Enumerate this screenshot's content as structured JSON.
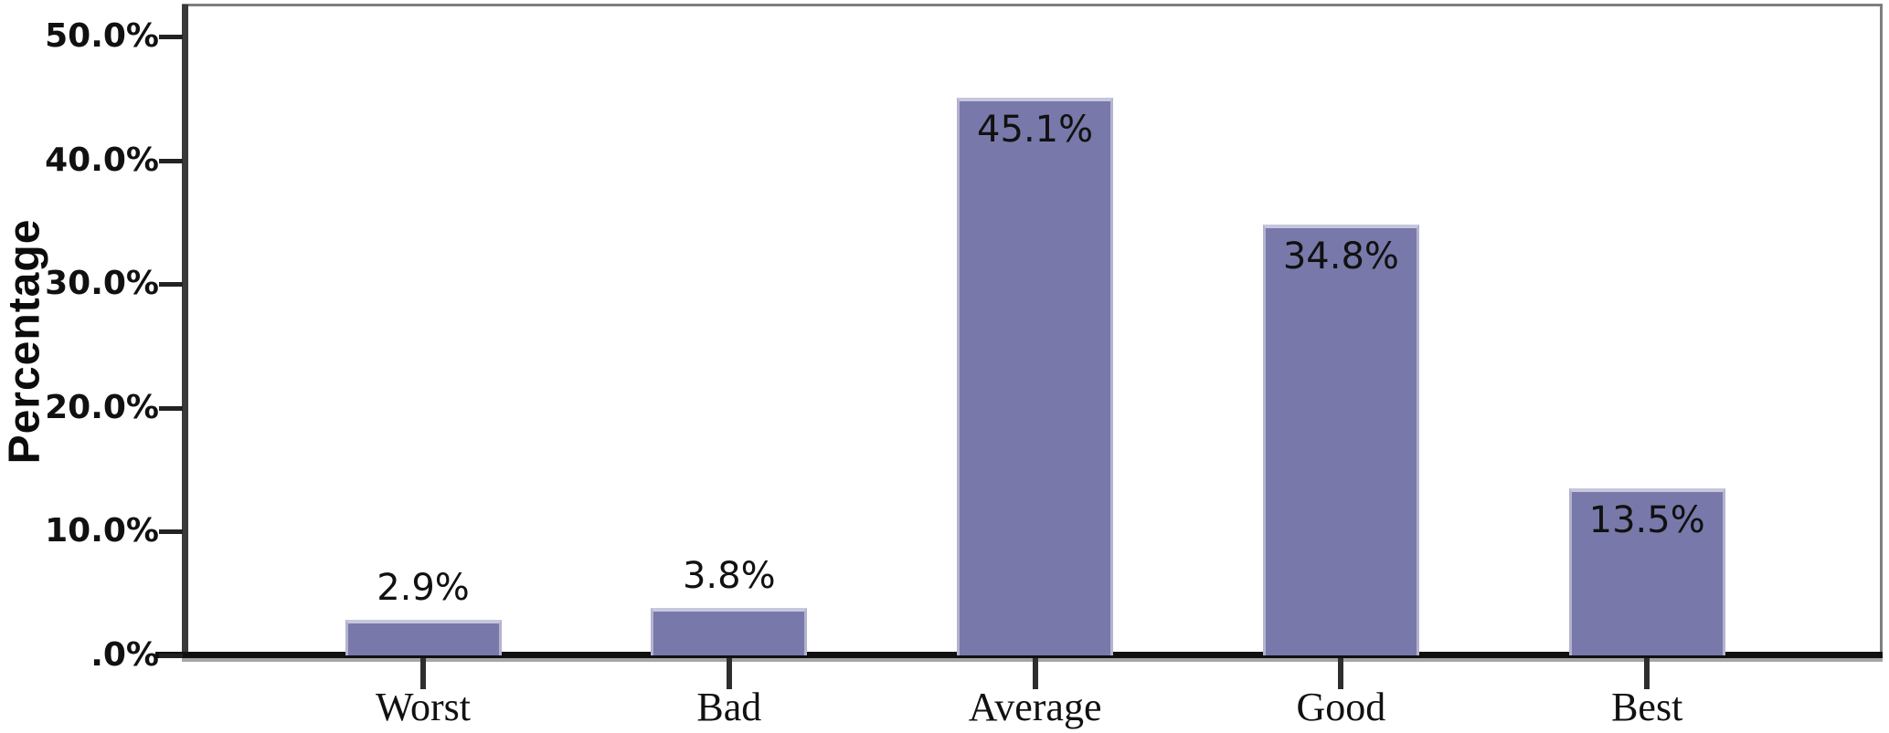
{
  "chart_data": {
    "type": "bar",
    "title": "",
    "categories": [
      "Worst",
      "Bad",
      "Average",
      "Good",
      "Best"
    ],
    "values": [
      2.9,
      3.8,
      45.1,
      34.8,
      13.5
    ],
    "value_labels": [
      "2.9%",
      "3.8%",
      "45.1%",
      "34.8%",
      "13.5%"
    ],
    "xlabel": "",
    "ylabel": "Percentage",
    "yticks": [
      {
        "value": 50,
        "label": "50.0%"
      },
      {
        "value": 40,
        "label": "40.0%"
      },
      {
        "value": 30,
        "label": "30.0%"
      },
      {
        "value": 20,
        "label": "20.0%"
      },
      {
        "value": 10,
        "label": "10.0%"
      },
      {
        "value": 0,
        "label": ".0%"
      }
    ],
    "ylim": [
      0,
      52.6
    ],
    "grid": false,
    "legend": false,
    "colors": {
      "bar_fill": "#7879aa",
      "bar_highlight": "#c6c6de",
      "frame_gray": "#7f7f7f",
      "axis_black": "#101010",
      "text": "#111111"
    }
  }
}
